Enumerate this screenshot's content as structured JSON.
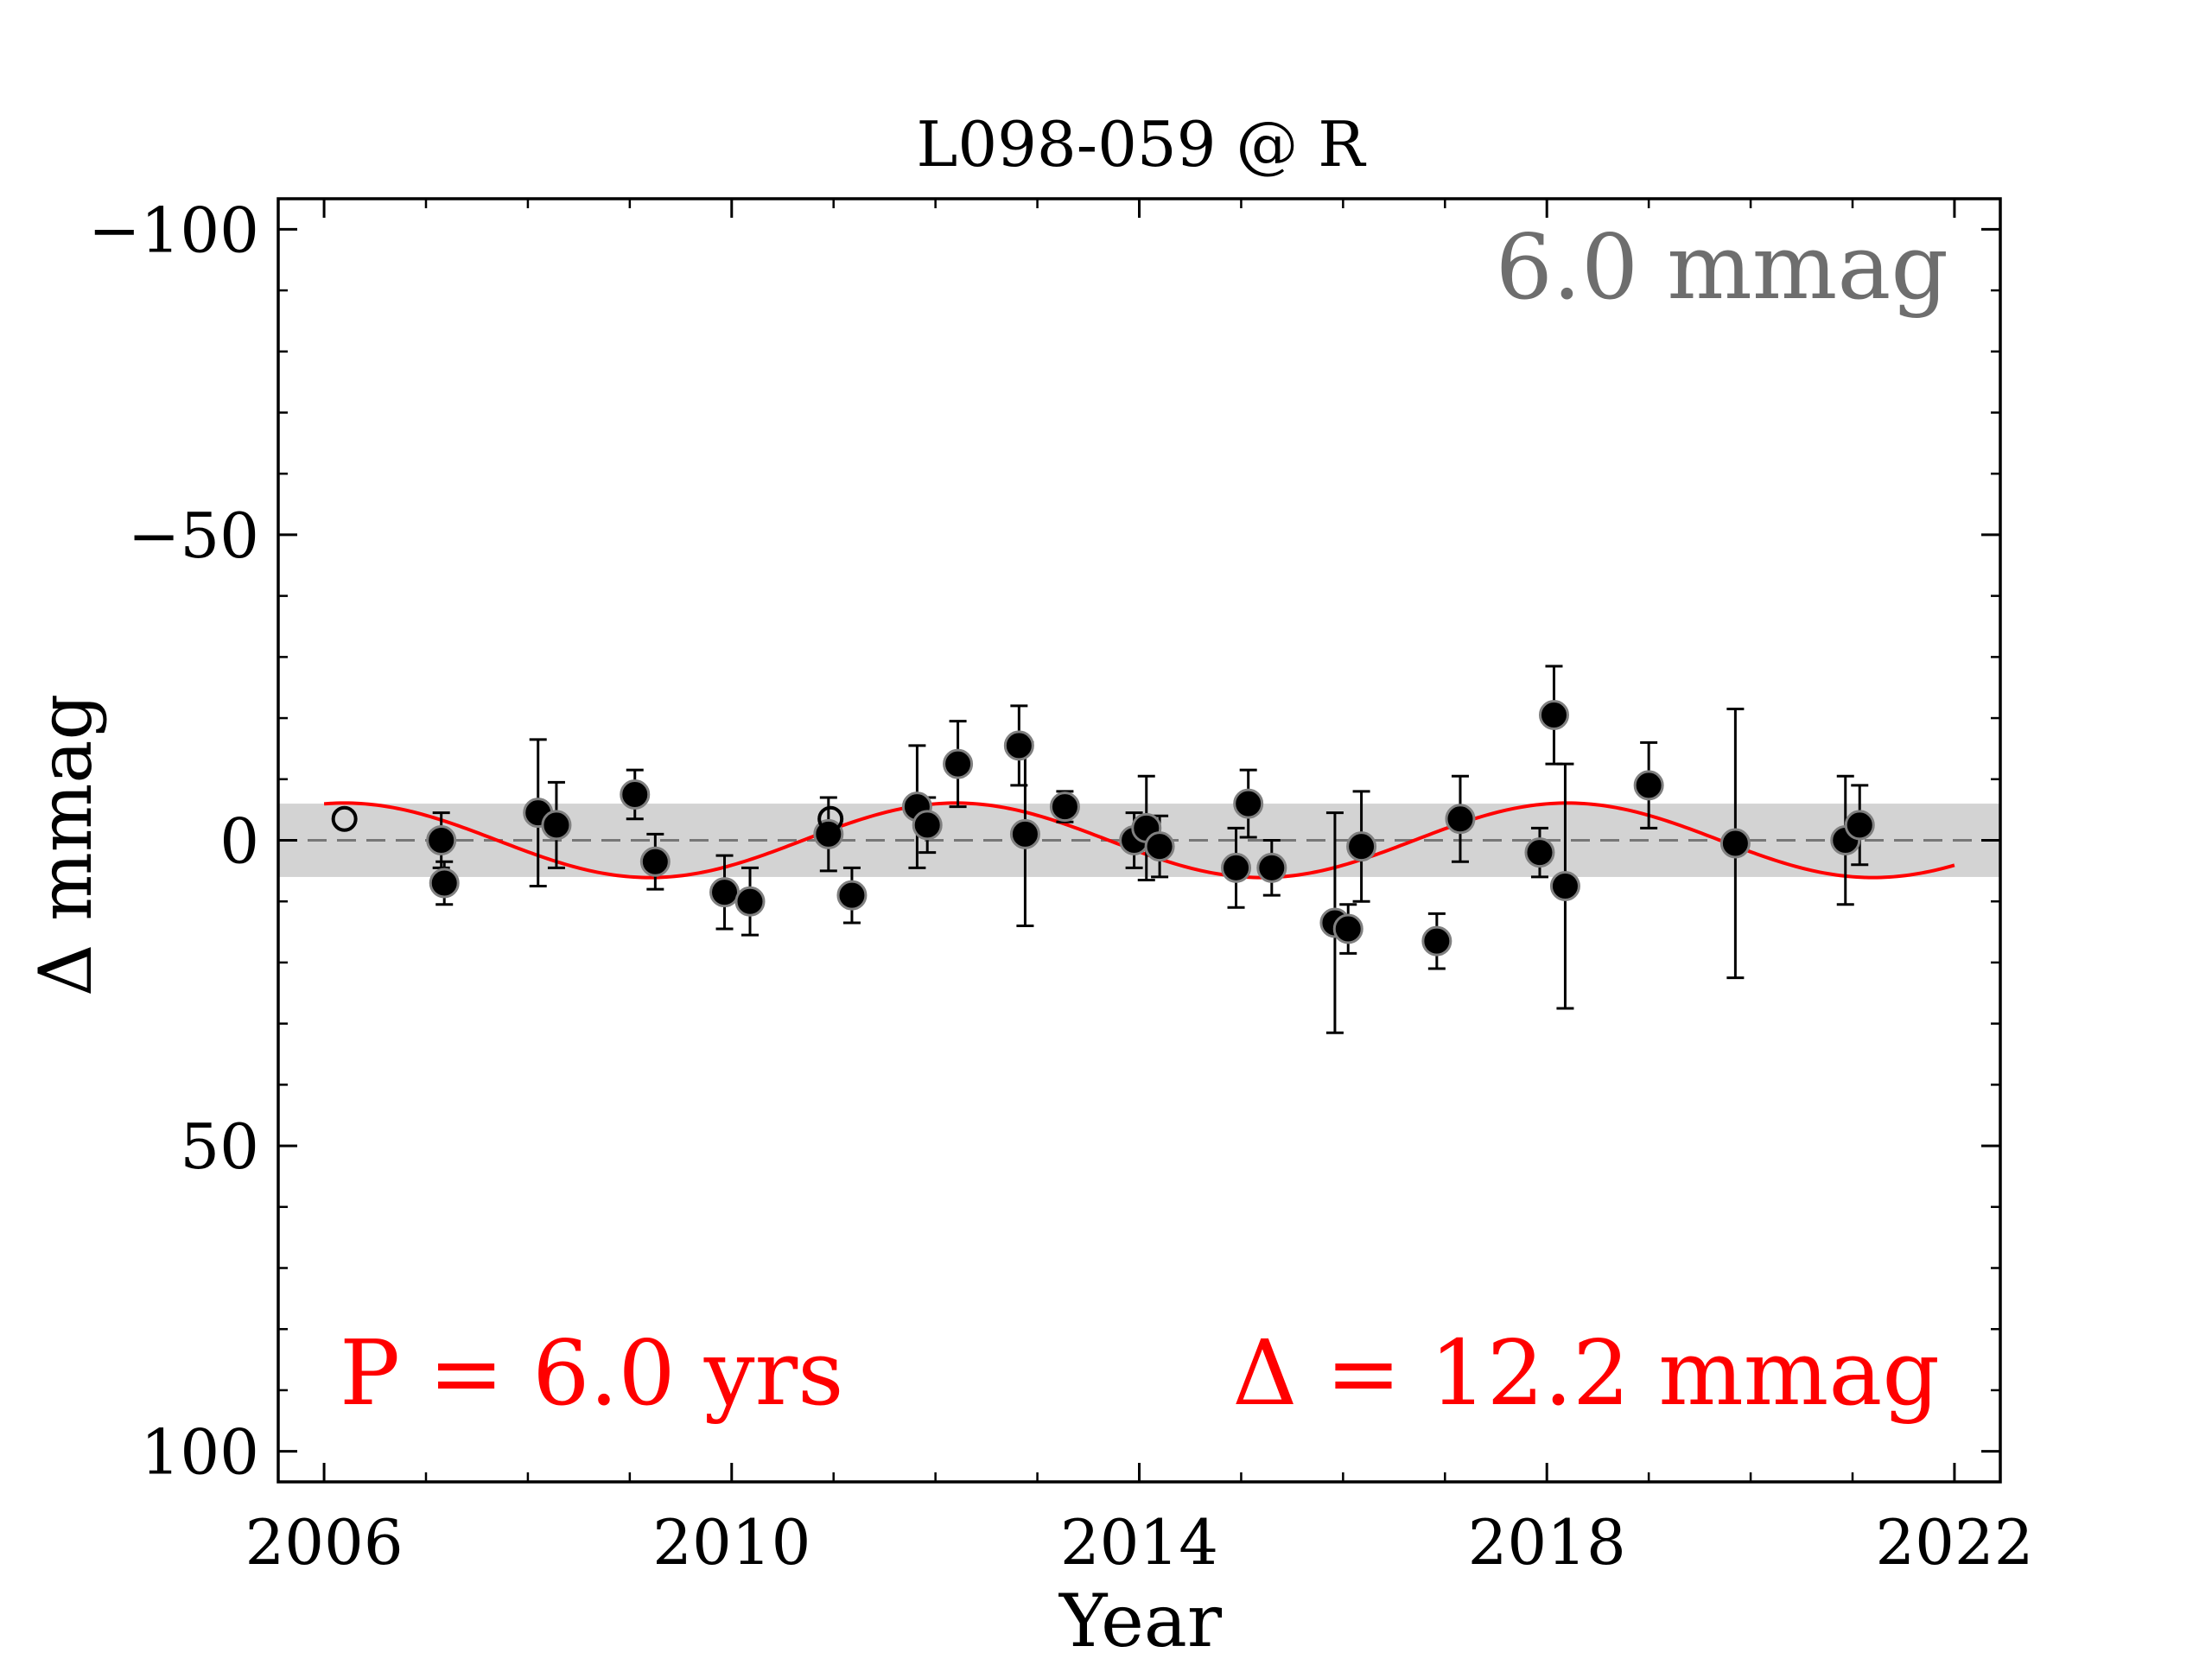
{
  "chart_data": {
    "type": "scatter",
    "title": "L098-059 @ R",
    "xlabel": "Year",
    "ylabel": "Δ  mmag",
    "xlim": [
      2005.55,
      2022.45
    ],
    "ylim": [
      105,
      -105
    ],
    "y_inverted": true,
    "xticks": [
      2006,
      2010,
      2014,
      2018,
      2022
    ],
    "yticks": [
      -100,
      -50,
      0,
      50,
      100
    ],
    "ytick_labels": [
      "−100",
      "−50",
      "0",
      "50",
      "100"
    ],
    "band": {
      "ymin": -6.0,
      "ymax": 6.0,
      "color": "#d3d3d3"
    },
    "zero_line": {
      "y": 0,
      "style": "dashed",
      "color": "#777777"
    },
    "annotations": {
      "scatter_label": "6.0 mmag",
      "period_label": "P = 6.0 yrs",
      "amplitude_label": "Δ = 12.2 mmag"
    },
    "colors": {
      "points": "#000000",
      "fit": "#ff0000",
      "scatter_label": "#6e6e6e",
      "period_label": "#ff0000",
      "amplitude_label": "#ff0000"
    },
    "fit": {
      "model": "sine",
      "amplitude": 6.1,
      "period": 6.0,
      "phase_year": 2004.7,
      "x_range": [
        2006.0,
        2022.0
      ]
    },
    "series": [
      {
        "marker": "filled",
        "points": [
          {
            "x": 2007.15,
            "y": 0.0,
            "err": 4.5
          },
          {
            "x": 2007.18,
            "y": 7.0,
            "err": 3.5
          },
          {
            "x": 2008.1,
            "y": -4.5,
            "err": 12.0
          },
          {
            "x": 2008.28,
            "y": -2.5,
            "err": 7.0
          },
          {
            "x": 2009.05,
            "y": -7.5,
            "err": 4.0
          },
          {
            "x": 2009.25,
            "y": 3.5,
            "err": 4.5
          },
          {
            "x": 2009.93,
            "y": 8.5,
            "err": 6.0
          },
          {
            "x": 2010.18,
            "y": 10.0,
            "err": 5.5
          },
          {
            "x": 2010.95,
            "y": -1.0,
            "err": 6.0
          },
          {
            "x": 2011.18,
            "y": 9.0,
            "err": 4.5
          },
          {
            "x": 2011.82,
            "y": -5.5,
            "err": 10.0
          },
          {
            "x": 2011.92,
            "y": -2.5,
            "err": 4.5
          },
          {
            "x": 2012.22,
            "y": -12.5,
            "err": 7.0
          },
          {
            "x": 2012.82,
            "y": -15.5,
            "err": 6.5
          },
          {
            "x": 2012.88,
            "y": -1.0,
            "err": 15.0
          },
          {
            "x": 2013.27,
            "y": -5.5,
            "err": 2.5
          },
          {
            "x": 2013.95,
            "y": 0.0,
            "err": 4.5
          },
          {
            "x": 2014.07,
            "y": -2.0,
            "err": 8.5
          },
          {
            "x": 2014.2,
            "y": 1.0,
            "err": 5.0
          },
          {
            "x": 2014.95,
            "y": 4.5,
            "err": 6.5
          },
          {
            "x": 2015.07,
            "y": -6.0,
            "err": 5.5
          },
          {
            "x": 2015.3,
            "y": 4.5,
            "err": 4.5
          },
          {
            "x": 2015.92,
            "y": 13.5,
            "err": 18.0
          },
          {
            "x": 2016.05,
            "y": 14.5,
            "err": 4.0
          },
          {
            "x": 2016.18,
            "y": 1.0,
            "err": 9.0
          },
          {
            "x": 2016.92,
            "y": 16.5,
            "err": 4.5
          },
          {
            "x": 2017.15,
            "y": -3.5,
            "err": 7.0
          },
          {
            "x": 2017.93,
            "y": 2.0,
            "err": 4.0
          },
          {
            "x": 2018.07,
            "y": -20.5,
            "err": 8.0
          },
          {
            "x": 2018.18,
            "y": 7.5,
            "err": 20.0
          },
          {
            "x": 2019.0,
            "y": -9.0,
            "err": 7.0
          },
          {
            "x": 2019.85,
            "y": 0.5,
            "err": 22.0
          },
          {
            "x": 2020.93,
            "y": 0.0,
            "err": 10.5
          },
          {
            "x": 2021.07,
            "y": -2.5,
            "err": 6.5
          }
        ]
      },
      {
        "marker": "open",
        "points": [
          {
            "x": 2006.2,
            "y": -3.5
          },
          {
            "x": 2010.97,
            "y": -3.5
          }
        ]
      }
    ]
  }
}
